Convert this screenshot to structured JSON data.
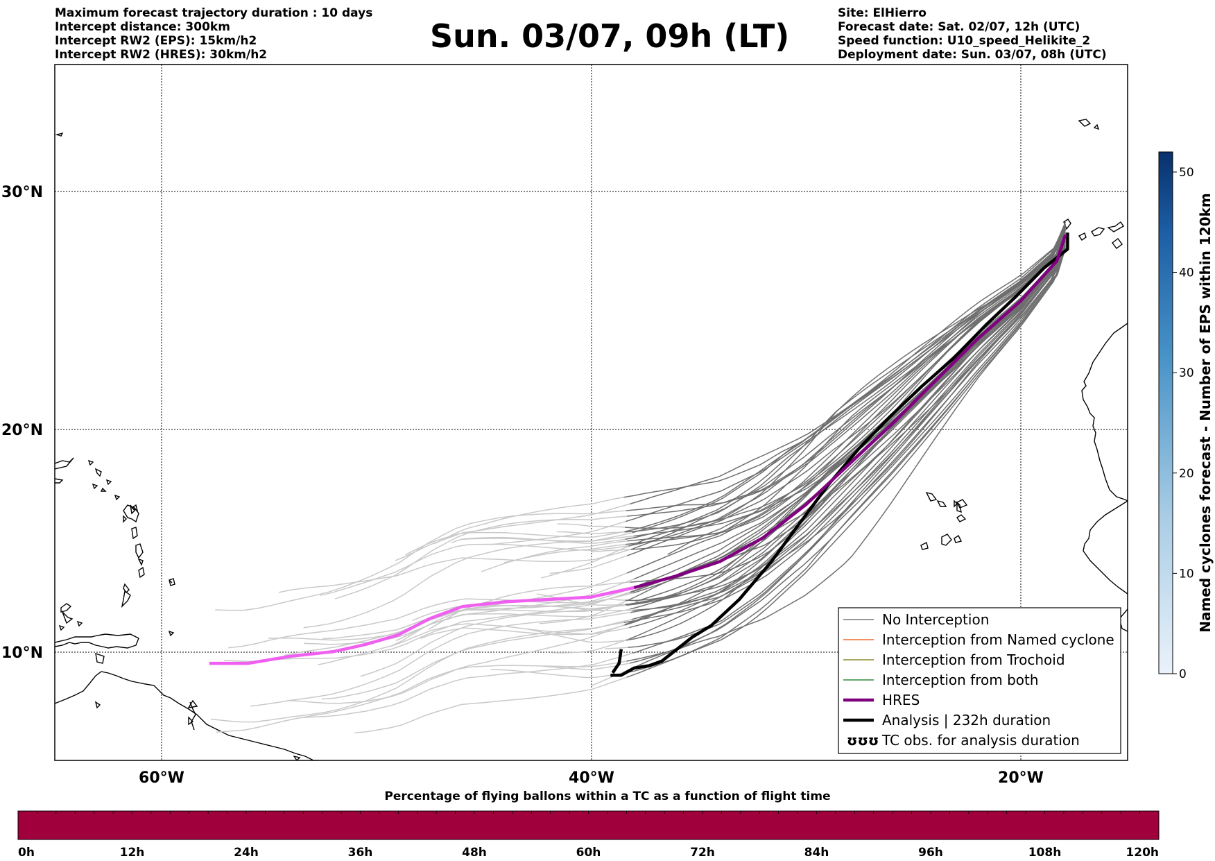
{
  "header_left": [
    "Maximum forecast trajectory duration : 10 days",
    "Intercept distance: 300km",
    "Intercept RW2 (EPS):  15km/h2",
    "Intercept RW2 (HRES): 30km/h2"
  ],
  "title": "Sun. 03/07, 09h (LT)",
  "header_right": [
    "Site: ElHierro",
    "Forecast date: Sat. 02/07, 12h (UTC)",
    "Speed function: U10_speed_Helikite_2",
    "Deployment date: Sun. 03/07, 08h (UTC)"
  ],
  "map": {
    "lon_range": [
      -65,
      -15
    ],
    "lat_range": [
      5.4,
      34.8
    ],
    "lat_labels": [
      "30°N",
      "20°N",
      "10°N"
    ],
    "lon_labels": [
      "60°W",
      "40°W",
      "20°W"
    ],
    "gridlines": true
  },
  "trajectories": {
    "hres": [
      [
        -57.8,
        9.5
      ],
      [
        -56,
        9.5
      ],
      [
        -54,
        9.8
      ],
      [
        -52,
        10
      ],
      [
        -50.5,
        10.3
      ],
      [
        -49,
        10.7
      ],
      [
        -47.5,
        11.4
      ],
      [
        -46,
        11.9
      ],
      [
        -44,
        12.1
      ],
      [
        -42,
        12.2
      ],
      [
        -40,
        12.3
      ],
      [
        -38,
        12.7
      ],
      [
        -36,
        13.2
      ],
      [
        -34,
        13.8
      ],
      [
        -32,
        14.8
      ],
      [
        -30,
        16.2
      ],
      [
        -28,
        17.9
      ],
      [
        -26,
        19.6
      ],
      [
        -24,
        21.4
      ],
      [
        -22,
        23.2
      ],
      [
        -20,
        24.8
      ],
      [
        -18.3,
        26.5
      ],
      [
        -17.9,
        27.6
      ]
    ],
    "analysis": [
      [
        -39.1,
        9.0
      ],
      [
        -38.6,
        9.0
      ],
      [
        -38.0,
        9.3
      ],
      [
        -37.3,
        9.4
      ],
      [
        -36.7,
        9.6
      ],
      [
        -36.0,
        10.1
      ],
      [
        -35.3,
        10.6
      ],
      [
        -34.4,
        11.1
      ],
      [
        -33.1,
        12.2
      ],
      [
        -31.6,
        13.8
      ],
      [
        -30.3,
        15.4
      ],
      [
        -28.9,
        17.1
      ],
      [
        -27.5,
        18.6
      ],
      [
        -26.1,
        19.9
      ],
      [
        -24.6,
        21.2
      ],
      [
        -23.1,
        22.4
      ],
      [
        -21.6,
        23.8
      ],
      [
        -20.2,
        25.0
      ],
      [
        -18.9,
        26.2
      ],
      [
        -17.8,
        27.0
      ],
      [
        -17.8,
        27.7
      ]
    ],
    "analysis_start": [
      [
        -38.6,
        10.1
      ],
      [
        -38.7,
        9.5
      ],
      [
        -39.0,
        9.1
      ]
    ]
  },
  "legend": {
    "items": [
      {
        "label": "No Interception",
        "color": "#777777",
        "kind": "line-thin"
      },
      {
        "label": "Interception from Named cyclone",
        "color": "#f06a30",
        "kind": "line-thin"
      },
      {
        "label": "Interception from Trochoid",
        "color": "#8a8a30",
        "kind": "line-thin"
      },
      {
        "label": "Interception from both",
        "color": "#2e8b3a",
        "kind": "line-thin"
      },
      {
        "label": "HRES",
        "color": "#800080",
        "kind": "line-thick"
      },
      {
        "label": "Analysis | 232h duration",
        "color": "#000000",
        "kind": "line-thick"
      },
      {
        "label": "TC obs. for analysis duration",
        "color": "#000000",
        "kind": "symbol",
        "symbol": "ʊʊʊ"
      }
    ]
  },
  "colorbar_right": {
    "label": "Named cyclones forecast - Number of EPS within 120km",
    "ticks": [
      "0",
      "10",
      "20",
      "30",
      "40",
      "50"
    ],
    "range": [
      0,
      52
    ],
    "colors": [
      "#e5eef9",
      "#08306b"
    ]
  },
  "colorbar_bottom": {
    "title": "Percentage of flying ballons within a TC as a function of flight time",
    "ticks": [
      "0h",
      "12h",
      "24h",
      "36h",
      "48h",
      "60h",
      "72h",
      "84h",
      "96h",
      "108h",
      "120h"
    ],
    "fill_color": "#a0003c"
  }
}
